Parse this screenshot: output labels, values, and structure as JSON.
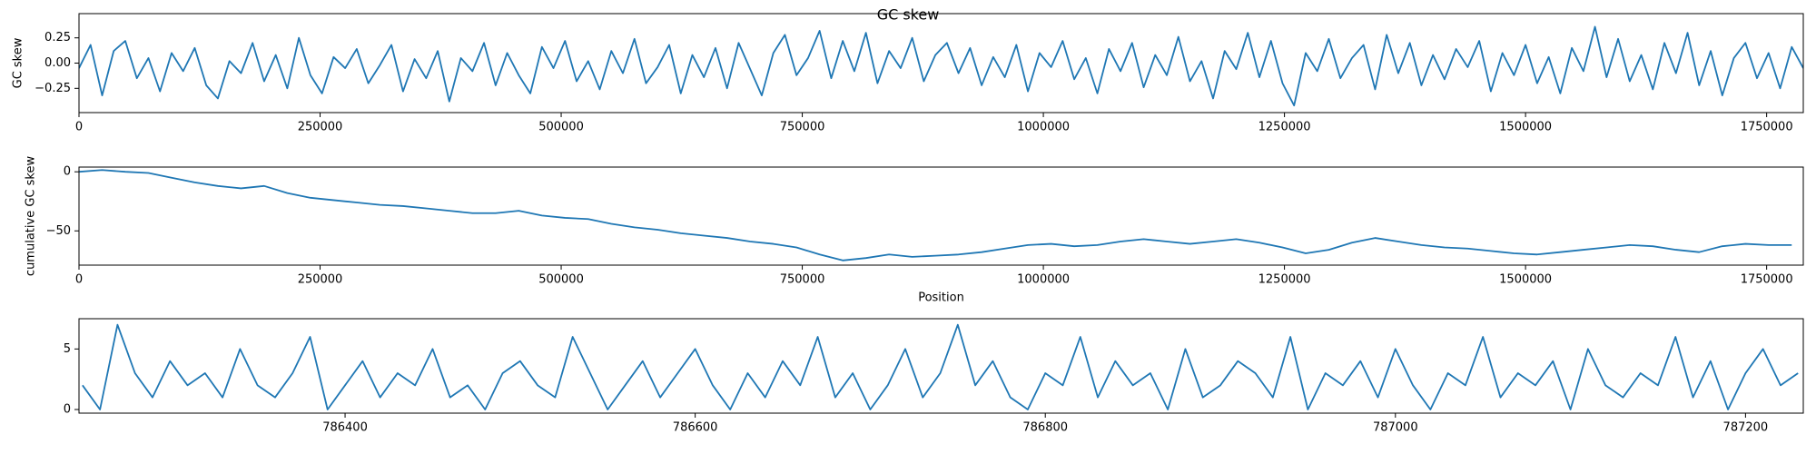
{
  "chart_data": [
    {
      "type": "line",
      "title": "GC skew",
      "ylabel": "GC skew",
      "x": [
        0,
        12000,
        24000,
        36000,
        48000,
        60000,
        72000,
        84000,
        96000,
        108000,
        120000,
        132000,
        144000,
        156000,
        168000,
        180000,
        192000,
        204000,
        216000,
        228000,
        240000,
        252000,
        264000,
        276000,
        288000,
        300000,
        312000,
        324000,
        336000,
        348000,
        360000,
        372000,
        384000,
        396000,
        408000,
        420000,
        432000,
        444000,
        456000,
        468000,
        480000,
        492000,
        504000,
        516000,
        528000,
        540000,
        552000,
        564000,
        576000,
        588000,
        600000,
        612000,
        624000,
        636000,
        648000,
        660000,
        672000,
        684000,
        696000,
        708000,
        720000,
        732000,
        744000,
        756000,
        768000,
        780000,
        792000,
        804000,
        816000,
        828000,
        840000,
        852000,
        864000,
        876000,
        888000,
        900000,
        912000,
        924000,
        936000,
        948000,
        960000,
        972000,
        984000,
        996000,
        1008000,
        1020000,
        1032000,
        1044000,
        1056000,
        1068000,
        1080000,
        1092000,
        1104000,
        1116000,
        1128000,
        1140000,
        1152000,
        1164000,
        1176000,
        1188000,
        1200000,
        1212000,
        1224000,
        1236000,
        1248000,
        1260000,
        1272000,
        1284000,
        1296000,
        1308000,
        1320000,
        1332000,
        1344000,
        1356000,
        1368000,
        1380000,
        1392000,
        1404000,
        1416000,
        1428000,
        1440000,
        1452000,
        1464000,
        1476000,
        1488000,
        1500000,
        1512000,
        1524000,
        1536000,
        1548000,
        1560000,
        1572000,
        1584000,
        1596000,
        1608000,
        1620000,
        1632000,
        1644000,
        1656000,
        1668000,
        1680000,
        1692000,
        1704000,
        1716000,
        1728000,
        1740000,
        1752000,
        1764000,
        1776000,
        1788000
      ],
      "series": [
        {
          "color": "#1f77b4",
          "values": [
            -0.05,
            0.18,
            -0.32,
            0.12,
            0.22,
            -0.15,
            0.05,
            -0.28,
            0.1,
            -0.08,
            0.15,
            -0.22,
            -0.35,
            0.02,
            -0.1,
            0.2,
            -0.18,
            0.08,
            -0.25,
            0.25,
            -0.12,
            -0.3,
            0.06,
            -0.05,
            0.14,
            -0.2,
            -0.02,
            0.18,
            -0.28,
            0.04,
            -0.15,
            0.12,
            -0.38,
            0.05,
            -0.08,
            0.2,
            -0.22,
            0.1,
            -0.12,
            -0.3,
            0.16,
            -0.05,
            0.22,
            -0.18,
            0.02,
            -0.26,
            0.12,
            -0.1,
            0.24,
            -0.2,
            -0.04,
            0.18,
            -0.3,
            0.08,
            -0.14,
            0.15,
            -0.25,
            0.2,
            -0.06,
            -0.32,
            0.1,
            0.28,
            -0.12,
            0.05,
            0.32,
            -0.15,
            0.22,
            -0.08,
            0.3,
            -0.2,
            0.12,
            -0.05,
            0.25,
            -0.18,
            0.08,
            0.2,
            -0.1,
            0.15,
            -0.22,
            0.06,
            -0.14,
            0.18,
            -0.28,
            0.1,
            -0.04,
            0.22,
            -0.16,
            0.05,
            -0.3,
            0.14,
            -0.08,
            0.2,
            -0.24,
            0.08,
            -0.12,
            0.26,
            -0.18,
            0.02,
            -0.35,
            0.12,
            -0.06,
            0.3,
            -0.14,
            0.22,
            -0.2,
            -0.42,
            0.1,
            -0.08,
            0.24,
            -0.15,
            0.05,
            0.18,
            -0.26,
            0.28,
            -0.1,
            0.2,
            -0.22,
            0.08,
            -0.16,
            0.14,
            -0.04,
            0.22,
            -0.28,
            0.1,
            -0.12,
            0.18,
            -0.2,
            0.06,
            -0.3,
            0.15,
            -0.08,
            0.36,
            -0.14,
            0.24,
            -0.18,
            0.08,
            -0.26,
            0.2,
            -0.1,
            0.3,
            -0.22,
            0.12,
            -0.32,
            0.05,
            0.2,
            -0.15,
            0.1,
            -0.25,
            0.16,
            -0.05
          ]
        }
      ],
      "xlim": [
        0,
        1788000
      ],
      "xticks": [
        0,
        250000,
        500000,
        750000,
        1000000,
        1250000,
        1500000,
        1750000
      ],
      "ylim": [
        -0.49,
        0.49
      ],
      "yticks": [
        {
          "value": -0.25,
          "label": "−0.25"
        },
        {
          "value": 0,
          "label": "0.00"
        },
        0.25
      ]
    },
    {
      "type": "line",
      "ylabel": "cumulative GC skew",
      "xlabel": "Position",
      "x": [
        0,
        24000,
        48000,
        72000,
        96000,
        120000,
        144000,
        168000,
        192000,
        216000,
        240000,
        264000,
        288000,
        312000,
        336000,
        360000,
        384000,
        408000,
        432000,
        456000,
        480000,
        504000,
        528000,
        552000,
        576000,
        600000,
        624000,
        648000,
        672000,
        696000,
        720000,
        744000,
        768000,
        792000,
        816000,
        840000,
        864000,
        888000,
        912000,
        936000,
        960000,
        984000,
        1008000,
        1032000,
        1056000,
        1080000,
        1104000,
        1128000,
        1152000,
        1176000,
        1200000,
        1224000,
        1248000,
        1272000,
        1296000,
        1320000,
        1344000,
        1368000,
        1392000,
        1416000,
        1440000,
        1464000,
        1488000,
        1512000,
        1536000,
        1560000,
        1584000,
        1608000,
        1632000,
        1656000,
        1680000,
        1704000,
        1728000,
        1752000,
        1776000
      ],
      "series": [
        {
          "color": "#1f77b4",
          "values": [
            0,
            1.5,
            0,
            -1,
            -5,
            -9,
            -12,
            -14,
            -12,
            -18,
            -22,
            -24,
            -26,
            -28,
            -29,
            -31,
            -33,
            -35,
            -35,
            -33,
            -37,
            -39,
            -40,
            -44,
            -47,
            -49,
            -52,
            -54,
            -56,
            -59,
            -61,
            -64,
            -70,
            -75,
            -73,
            -70,
            -72,
            -71,
            -70,
            -68,
            -65,
            -62,
            -61,
            -63,
            -62,
            -59,
            -57,
            -59,
            -61,
            -59,
            -57,
            -60,
            -64,
            -69,
            -66,
            -60,
            -56,
            -59,
            -62,
            -64,
            -65,
            -67,
            -69,
            -70,
            -68,
            -66,
            -64,
            -62,
            -63,
            -66,
            -68,
            -63,
            -61,
            -62,
            -62
          ]
        }
      ],
      "xlim": [
        0,
        1788000
      ],
      "xticks": [
        0,
        250000,
        500000,
        750000,
        1000000,
        1250000,
        1500000,
        1750000
      ],
      "ylim": [
        -79,
        4
      ],
      "yticks": [
        {
          "value": -50,
          "label": "−50"
        },
        0
      ]
    },
    {
      "type": "line",
      "x": [
        786250,
        786260,
        786270,
        786280,
        786290,
        786300,
        786310,
        786320,
        786330,
        786340,
        786350,
        786360,
        786370,
        786380,
        786390,
        786400,
        786410,
        786420,
        786430,
        786440,
        786450,
        786460,
        786470,
        786480,
        786490,
        786500,
        786510,
        786520,
        786530,
        786540,
        786550,
        786560,
        786570,
        786580,
        786590,
        786600,
        786610,
        786620,
        786630,
        786640,
        786650,
        786660,
        786670,
        786680,
        786690,
        786700,
        786710,
        786720,
        786730,
        786740,
        786750,
        786760,
        786770,
        786780,
        786790,
        786800,
        786810,
        786820,
        786830,
        786840,
        786850,
        786860,
        786870,
        786880,
        786890,
        786900,
        786910,
        786920,
        786930,
        786940,
        786950,
        786960,
        786970,
        786980,
        786990,
        787000,
        787010,
        787020,
        787030,
        787040,
        787050,
        787060,
        787070,
        787080,
        787090,
        787100,
        787110,
        787120,
        787130,
        787140,
        787150,
        787160,
        787170,
        787180,
        787190,
        787200,
        787210,
        787220,
        787230
      ],
      "series": [
        {
          "color": "#1f77b4",
          "values": [
            2,
            0,
            7,
            3,
            1,
            4,
            2,
            3,
            1,
            5,
            2,
            1,
            3,
            6,
            0,
            2,
            4,
            1,
            3,
            2,
            5,
            1,
            2,
            0,
            3,
            4,
            2,
            1,
            6,
            3,
            0,
            2,
            4,
            1,
            3,
            5,
            2,
            0,
            3,
            1,
            4,
            2,
            6,
            1,
            3,
            0,
            2,
            5,
            1,
            3,
            7,
            2,
            4,
            1,
            0,
            3,
            2,
            6,
            1,
            4,
            2,
            3,
            0,
            5,
            1,
            2,
            4,
            3,
            1,
            6,
            0,
            3,
            2,
            4,
            1,
            5,
            2,
            0,
            3,
            2,
            6,
            1,
            3,
            2,
            4,
            0,
            5,
            2,
            1,
            3,
            2,
            6,
            1,
            4,
            0,
            3,
            5,
            2,
            3
          ]
        }
      ],
      "xlim": [
        786248,
        787233
      ],
      "xticks": [
        786400,
        786600,
        786800,
        787000,
        787200
      ],
      "ylim": [
        -0.3,
        7.5
      ],
      "yticks": [
        0,
        5
      ]
    }
  ]
}
